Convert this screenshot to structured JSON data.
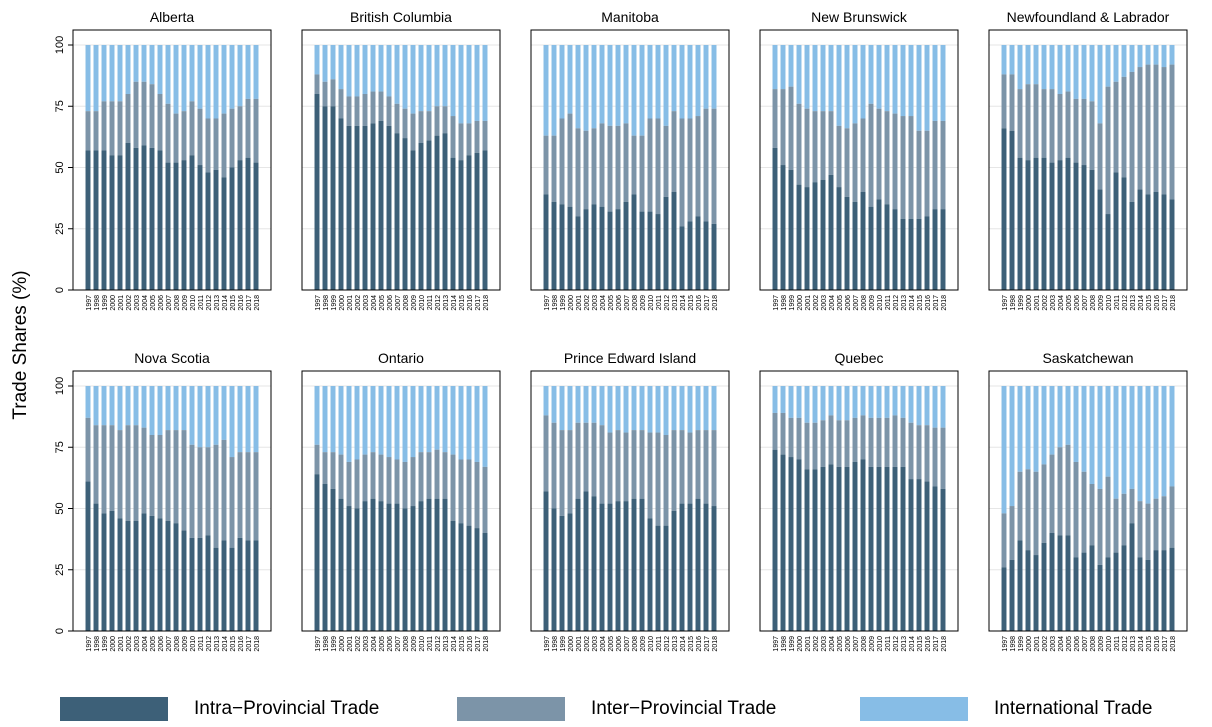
{
  "colors": {
    "intra": "#3d6078",
    "inter": "#7c94a8",
    "international": "#87bde6",
    "gridline": "#e6e6e6",
    "axis": "#000000"
  },
  "y_axis_label": "Trade Shares (%)",
  "legend": [
    {
      "key": "intra",
      "label": "Intra−Provincial Trade"
    },
    {
      "key": "inter",
      "label": "Inter−Provincial Trade"
    },
    {
      "key": "international",
      "label": "International Trade"
    }
  ],
  "chart_data": {
    "type": "bar",
    "stacked": true,
    "ylim": [
      0,
      100
    ],
    "yticks": [
      0,
      25,
      50,
      75,
      100
    ],
    "categories": [
      "1997",
      "1998",
      "1999",
      "2000",
      "2001",
      "2002",
      "2003",
      "2004",
      "2005",
      "2006",
      "2007",
      "2008",
      "2009",
      "2010",
      "2011",
      "2012",
      "2013",
      "2014",
      "2015",
      "2016",
      "2017",
      "2018"
    ],
    "series_names": [
      "Intra−Provincial Trade",
      "Inter−Provincial Trade",
      "International Trade"
    ],
    "panels": [
      {
        "title": "Alberta",
        "intra": [
          57,
          57,
          57,
          55,
          55,
          60,
          58,
          59,
          58,
          57,
          52,
          52,
          53,
          55,
          51,
          48,
          49,
          46,
          50,
          53,
          54,
          52
        ],
        "inter_cum": [
          73,
          73,
          77,
          77,
          77,
          80,
          85,
          85,
          84,
          80,
          76,
          72,
          73,
          77,
          74,
          70,
          70,
          72,
          74,
          75,
          78,
          78
        ]
      },
      {
        "title": "British Columbia",
        "intra": [
          80,
          75,
          75,
          70,
          67,
          67,
          67,
          68,
          69,
          67,
          64,
          62,
          57,
          60,
          61,
          63,
          64,
          54,
          53,
          55,
          56,
          57
        ],
        "inter_cum": [
          88,
          85,
          86,
          82,
          79,
          79,
          80,
          81,
          81,
          79,
          76,
          74,
          72,
          73,
          73,
          75,
          75,
          71,
          68,
          68,
          69,
          69
        ]
      },
      {
        "title": "Manitoba",
        "intra": [
          39,
          36,
          35,
          34,
          30,
          33,
          35,
          34,
          32,
          33,
          36,
          39,
          32,
          32,
          31,
          38,
          40,
          26,
          28,
          30,
          28,
          27
        ],
        "inter_cum": [
          63,
          63,
          70,
          72,
          66,
          65,
          66,
          68,
          67,
          67,
          68,
          63,
          63,
          70,
          70,
          67,
          73,
          70,
          70,
          71,
          74,
          74
        ]
      },
      {
        "title": "New Brunswick",
        "intra": [
          58,
          51,
          49,
          43,
          42,
          44,
          45,
          47,
          42,
          38,
          36,
          40,
          34,
          37,
          35,
          33,
          29,
          29,
          29,
          30,
          33,
          33
        ],
        "inter_cum": [
          82,
          82,
          83,
          76,
          74,
          73,
          73,
          73,
          67,
          66,
          68,
          70,
          76,
          74,
          73,
          72,
          71,
          71,
          65,
          65,
          69,
          69
        ]
      },
      {
        "title": "Newfoundland & Labrador",
        "intra": [
          66,
          65,
          54,
          53,
          54,
          54,
          52,
          53,
          54,
          52,
          51,
          49,
          41,
          31,
          48,
          46,
          36,
          41,
          39,
          40,
          39,
          37
        ],
        "inter_cum": [
          88,
          88,
          82,
          84,
          84,
          82,
          82,
          80,
          81,
          78,
          78,
          77,
          68,
          83,
          85,
          87,
          89,
          91,
          92,
          92,
          91,
          92
        ]
      },
      {
        "title": "Nova Scotia",
        "intra": [
          61,
          52,
          48,
          49,
          46,
          45,
          45,
          48,
          47,
          46,
          45,
          44,
          41,
          38,
          38,
          39,
          34,
          37,
          34,
          38,
          37,
          37
        ],
        "inter_cum": [
          87,
          84,
          84,
          84,
          82,
          84,
          84,
          83,
          80,
          80,
          82,
          82,
          82,
          76,
          75,
          75,
          76,
          78,
          71,
          73,
          73,
          73
        ]
      },
      {
        "title": "Ontario",
        "intra": [
          64,
          60,
          58,
          54,
          51,
          50,
          53,
          54,
          53,
          52,
          52,
          50,
          51,
          53,
          54,
          54,
          54,
          45,
          44,
          43,
          42,
          40
        ],
        "inter_cum": [
          76,
          73,
          73,
          72,
          69,
          70,
          72,
          73,
          72,
          71,
          70,
          69,
          71,
          73,
          73,
          74,
          73,
          72,
          70,
          70,
          69,
          67
        ]
      },
      {
        "title": "Prince Edward Island",
        "intra": [
          57,
          50,
          47,
          48,
          54,
          57,
          55,
          52,
          52,
          53,
          53,
          54,
          54,
          46,
          43,
          43,
          49,
          52,
          52,
          54,
          52,
          51
        ],
        "inter_cum": [
          88,
          85,
          82,
          82,
          85,
          85,
          85,
          84,
          81,
          82,
          81,
          82,
          82,
          81,
          81,
          80,
          82,
          82,
          81,
          82,
          82,
          82
        ]
      },
      {
        "title": "Quebec",
        "intra": [
          74,
          72,
          71,
          70,
          66,
          66,
          67,
          68,
          67,
          67,
          69,
          70,
          67,
          67,
          67,
          67,
          67,
          62,
          62,
          61,
          59,
          58
        ],
        "inter_cum": [
          89,
          89,
          87,
          87,
          85,
          85,
          86,
          88,
          86,
          86,
          87,
          88,
          87,
          87,
          87,
          88,
          87,
          85,
          84,
          84,
          83,
          83
        ]
      },
      {
        "title": "Saskatchewan",
        "intra": [
          26,
          29,
          37,
          33,
          31,
          36,
          40,
          39,
          39,
          30,
          32,
          35,
          27,
          30,
          32,
          35,
          44,
          30,
          29,
          33,
          33,
          34
        ],
        "inter_cum": [
          48,
          51,
          65,
          66,
          65,
          68,
          72,
          75,
          76,
          69,
          65,
          60,
          58,
          63,
          54,
          56,
          58,
          53,
          52,
          54,
          55,
          59
        ]
      }
    ]
  }
}
